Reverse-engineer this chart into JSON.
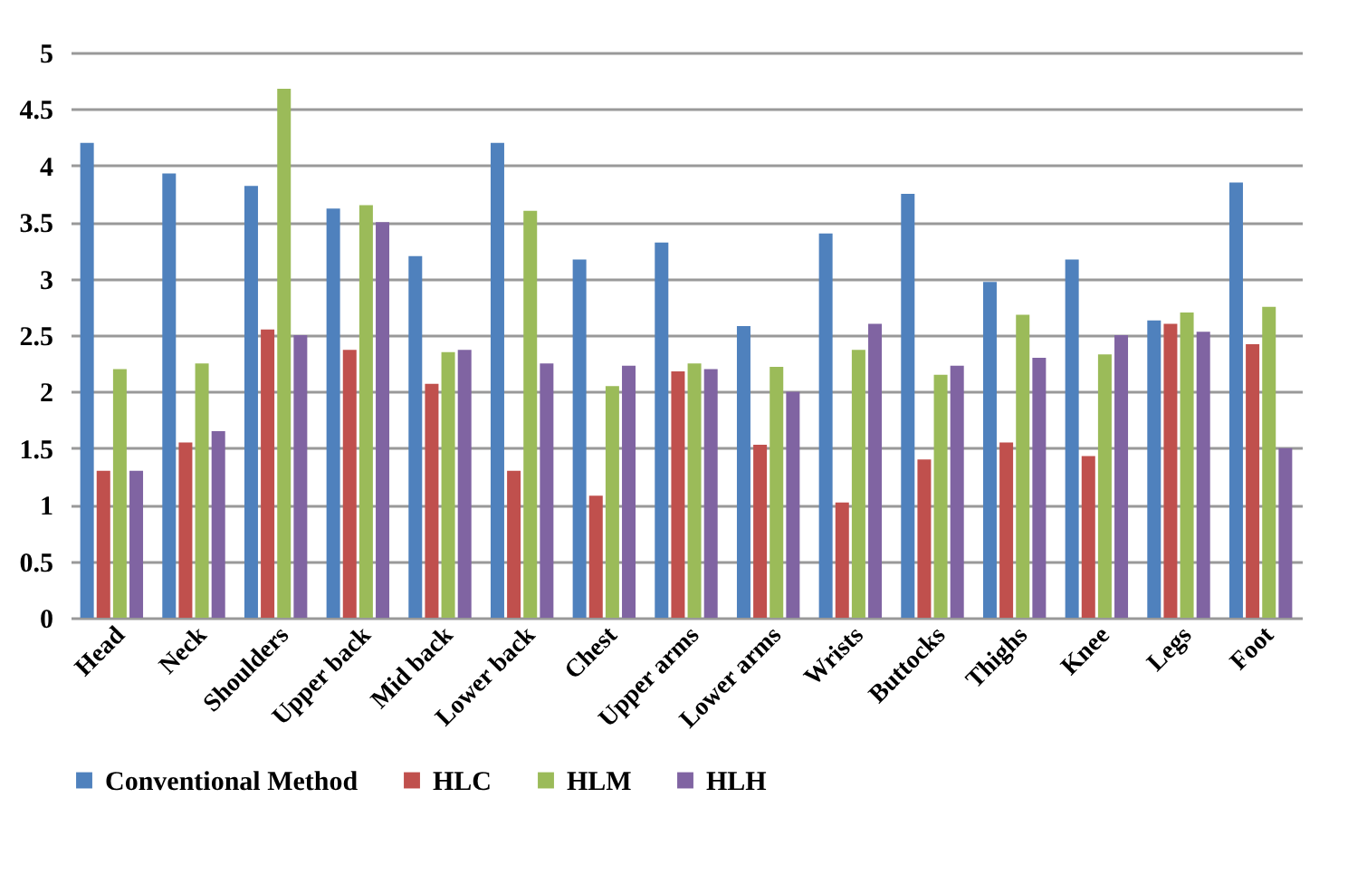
{
  "chart_data": {
    "type": "bar",
    "categories": [
      "Head",
      "Neck",
      "Shoulders",
      "Upper back",
      "Mid back",
      "Lower back",
      "Chest",
      "Upper arms",
      "Lower arms",
      "Wrists",
      "Buttocks",
      "Thighs",
      "Knee",
      "Legs",
      "Foot"
    ],
    "series": [
      {
        "name": "Conventional Method",
        "color": "#4f81bd",
        "values": [
          4.2,
          3.93,
          3.82,
          3.62,
          3.2,
          4.2,
          3.17,
          3.32,
          2.58,
          3.4,
          3.75,
          2.97,
          3.17,
          2.63,
          3.85
        ]
      },
      {
        "name": "HLC",
        "color": "#c0504d",
        "values": [
          1.3,
          1.55,
          2.55,
          2.37,
          2.07,
          1.3,
          1.08,
          2.18,
          1.53,
          1.02,
          1.4,
          1.55,
          1.43,
          2.6,
          2.42
        ]
      },
      {
        "name": "HLM",
        "color": "#9bbb59",
        "values": [
          2.2,
          2.25,
          4.68,
          3.65,
          2.35,
          3.6,
          2.05,
          2.25,
          2.22,
          2.37,
          2.15,
          2.68,
          2.33,
          2.7,
          2.75
        ]
      },
      {
        "name": "HLH",
        "color": "#8064a2",
        "values": [
          1.3,
          1.65,
          2.5,
          3.5,
          2.37,
          2.25,
          2.23,
          2.2,
          2.0,
          2.6,
          2.23,
          2.3,
          2.5,
          2.53,
          1.5
        ]
      }
    ],
    "ylim": [
      0,
      5
    ],
    "yticks": [
      0,
      0.5,
      1,
      1.5,
      2,
      2.5,
      3,
      3.5,
      4,
      4.5,
      5
    ],
    "grid": "y",
    "legend": "bottom"
  }
}
